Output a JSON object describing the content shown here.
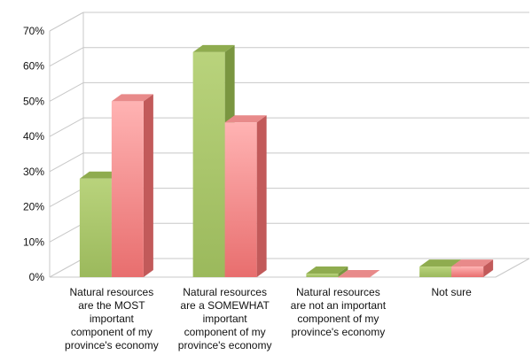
{
  "chart_data": {
    "type": "bar",
    "title": "",
    "xlabel": "",
    "ylabel": "",
    "ylim": [
      0,
      70
    ],
    "y_ticks": [
      0,
      10,
      20,
      30,
      40,
      50,
      60,
      70
    ],
    "y_tick_format": "percent",
    "grid": true,
    "legend": "none",
    "style": "3d",
    "categories": [
      [
        "Natural resources",
        "are the MOST",
        "important",
        "component of my",
        "province's economy"
      ],
      [
        "Natural resources",
        "are a SOMEWHAT",
        "important",
        "component of my",
        "province's economy"
      ],
      [
        "Natural resources",
        "are not an important",
        "component of my",
        "province's economy"
      ],
      [
        "Not sure"
      ]
    ],
    "series": [
      {
        "color": "#a8c46a",
        "values": [
          28,
          64,
          1,
          3
        ]
      },
      {
        "color": "#f08a8a",
        "values": [
          50,
          44,
          0,
          3
        ]
      }
    ]
  }
}
